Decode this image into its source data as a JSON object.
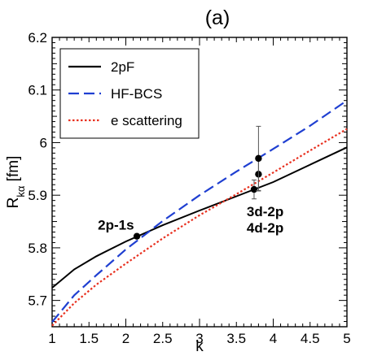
{
  "chart_data": {
    "type": "line",
    "title": "(a)",
    "xlabel": "k",
    "ylabel": "R",
    "ylabel_sub": "kα",
    "ylabel_unit": " [fm]",
    "xlim": [
      1,
      5
    ],
    "ylim": [
      5.65,
      6.2
    ],
    "x_ticks": [
      1,
      1.5,
      2,
      2.5,
      3,
      3.5,
      4,
      4.5,
      5
    ],
    "x_tick_labels": [
      "1",
      "1.5",
      "2",
      "2.5",
      "3",
      "3.5",
      "4",
      "4.5",
      "5"
    ],
    "y_ticks": [
      5.7,
      5.8,
      5.9,
      6.0,
      6.1,
      6.2
    ],
    "y_tick_labels": [
      "5.7",
      "5.8",
      "5.9",
      "6",
      "6.1",
      "6.2"
    ],
    "grid": false,
    "legend_position": "top-left",
    "series": [
      {
        "name": "2pF",
        "color": "#000000",
        "dash": "solid",
        "x": [
          1.0,
          1.3,
          1.6,
          2.0,
          2.5,
          3.0,
          3.5,
          4.0,
          4.5,
          5.0
        ],
        "y": [
          5.724,
          5.759,
          5.784,
          5.812,
          5.843,
          5.871,
          5.898,
          5.925,
          5.958,
          5.991
        ]
      },
      {
        "name": "HF-BCS",
        "color": "#1f3fd1",
        "dash": "long-dash",
        "x": [
          1.0,
          1.3,
          1.6,
          2.0,
          2.5,
          3.0,
          3.5,
          4.0,
          4.5,
          5.0
        ],
        "y": [
          5.659,
          5.71,
          5.748,
          5.797,
          5.851,
          5.9,
          5.945,
          5.988,
          6.032,
          6.08
        ]
      },
      {
        "name": "e scattering",
        "color": "#e8301f",
        "dash": "dotted",
        "x": [
          1.0,
          1.3,
          1.6,
          2.0,
          2.5,
          3.0,
          3.5,
          4.0,
          4.5,
          5.0
        ],
        "y": [
          5.652,
          5.695,
          5.73,
          5.77,
          5.818,
          5.862,
          5.902,
          5.943,
          5.985,
          6.026
        ]
      }
    ],
    "points": [
      {
        "x": 2.15,
        "y": 5.822,
        "err": 0.004
      },
      {
        "x": 3.74,
        "y": 5.911,
        "err": 0.018
      },
      {
        "x": 3.8,
        "y": 5.94,
        "err": 0.032
      },
      {
        "x": 3.8,
        "y": 5.97,
        "err": 0.061
      }
    ],
    "annotations": [
      {
        "text": "2p-1s",
        "x": 1.62,
        "y": 5.835
      },
      {
        "text": "3d-2p",
        "x": 3.64,
        "y": 5.86
      },
      {
        "text": "4d-2p",
        "x": 3.64,
        "y": 5.829
      }
    ]
  }
}
